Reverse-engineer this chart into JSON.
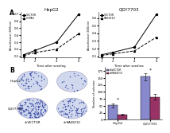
{
  "panel_A_left_title": "HepG2",
  "panel_A_right_title": "QGY7703",
  "panel_A_left_xlabel": "Time after seeding",
  "panel_A_right_xlabel": "Time after seeding",
  "panel_A_ylabel": "Absorbance (450nm)",
  "panel_A_left_legend": [
    "VECTOR",
    "CDPA3"
  ],
  "panel_A_right_legend": [
    "VECTOR",
    "RASSF10"
  ],
  "days": [
    1,
    2,
    4,
    6
  ],
  "hepg2_vector": [
    0.12,
    0.18,
    0.3,
    0.7
  ],
  "hepg2_cdpa3": [
    0.11,
    0.15,
    0.2,
    0.42
  ],
  "qgy_vector": [
    0.12,
    0.15,
    0.22,
    0.65
  ],
  "qgy_rassf10": [
    0.11,
    0.13,
    0.17,
    0.35
  ],
  "panel_B_bar_xlabel": [
    "HepG2",
    "QGY7703"
  ],
  "panel_B_bar_ylabel": "Number of colonies",
  "panel_B_legend": [
    "shVECTOR",
    "shRASSF10"
  ],
  "panel_B_hepg2_vector": 52,
  "panel_B_hepg2_rassf10": 18,
  "panel_B_qgy_vector": 155,
  "panel_B_qgy_rassf10": 82,
  "bar_color_vector": "#8888cc",
  "bar_color_rassf10": "#993366",
  "background": "#ffffff",
  "colony_circle_color": "#d0d8ee",
  "colony_dot_color": "#4455aa",
  "plate_labels_row": [
    "HepG2",
    "QGY7703"
  ],
  "plate_labels_col": [
    "shVECTOR",
    "shRASSF10"
  ],
  "plate_counts": [
    50,
    18,
    140,
    75
  ]
}
